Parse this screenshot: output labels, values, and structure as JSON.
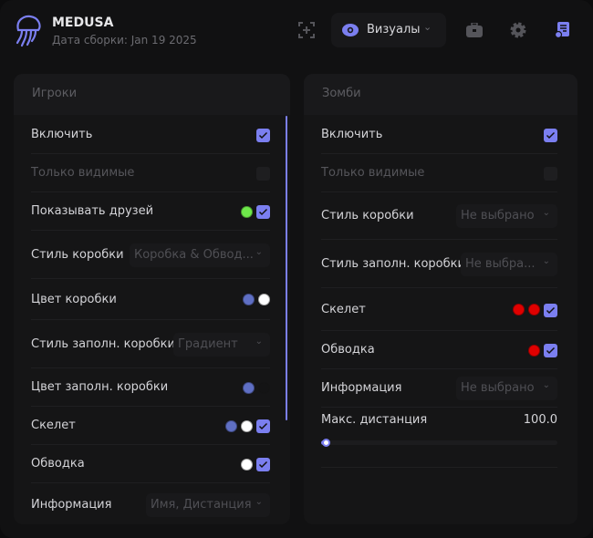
{
  "app": {
    "title": "MEDUSA",
    "build": "Дата сборки: Jan 19 2025"
  },
  "toolbar": {
    "tab_label": "Визуалы",
    "icons": [
      "crosshair-add-icon",
      "eye-icon",
      "briefcase-icon",
      "gear-icon",
      "config-icon"
    ],
    "accent": "#7b7ff0"
  },
  "players": {
    "title": "Игроки",
    "rows": [
      {
        "label": "Включить",
        "type": "check",
        "checked": true
      },
      {
        "label": "Только видимые",
        "type": "check",
        "checked": false,
        "disabled": true
      },
      {
        "label": "Показывать друзей",
        "type": "check",
        "checked": true,
        "colors": [
          "#6ee84a"
        ]
      },
      {
        "label": "Стиль коробки",
        "type": "select",
        "value": "Коробка & Обвод..."
      },
      {
        "label": "Цвет коробки",
        "type": "colors",
        "colors": [
          "#5f6fc4",
          "#ffffff"
        ]
      },
      {
        "label": "Стиль заполн. коробки",
        "type": "select",
        "value": "Градиент"
      },
      {
        "label": "Цвет заполн. коробки",
        "type": "colors",
        "colors": [
          "#5f6fc4",
          "#141415"
        ]
      },
      {
        "label": "Скелет",
        "type": "check",
        "checked": true,
        "colors": [
          "#5f6fc4",
          "#ffffff"
        ]
      },
      {
        "label": "Обводка",
        "type": "check",
        "checked": true,
        "colors": [
          "#ffffff"
        ]
      },
      {
        "label": "Информация",
        "type": "select",
        "value": "Имя, Дистанция"
      }
    ]
  },
  "zombies": {
    "title": "Зомби",
    "rows": [
      {
        "label": "Включить",
        "type": "check",
        "checked": true
      },
      {
        "label": "Только видимые",
        "type": "check",
        "checked": false,
        "disabled": true
      },
      {
        "label": "Стиль коробки",
        "type": "select",
        "value": "Не выбрано"
      },
      {
        "label": "Стиль заполн. коробки",
        "type": "select",
        "value": "Не выбра..."
      },
      {
        "label": "Скелет",
        "type": "check",
        "checked": true,
        "colors": [
          "#e00000",
          "#e00000"
        ]
      },
      {
        "label": "Обводка",
        "type": "check",
        "checked": true,
        "colors": [
          "#e00000"
        ]
      },
      {
        "label": "Информация",
        "type": "select",
        "value": "Не выбрано"
      },
      {
        "label": "Макс. дистанция",
        "type": "slider",
        "value": "100.0",
        "fraction": 0.02
      }
    ]
  }
}
